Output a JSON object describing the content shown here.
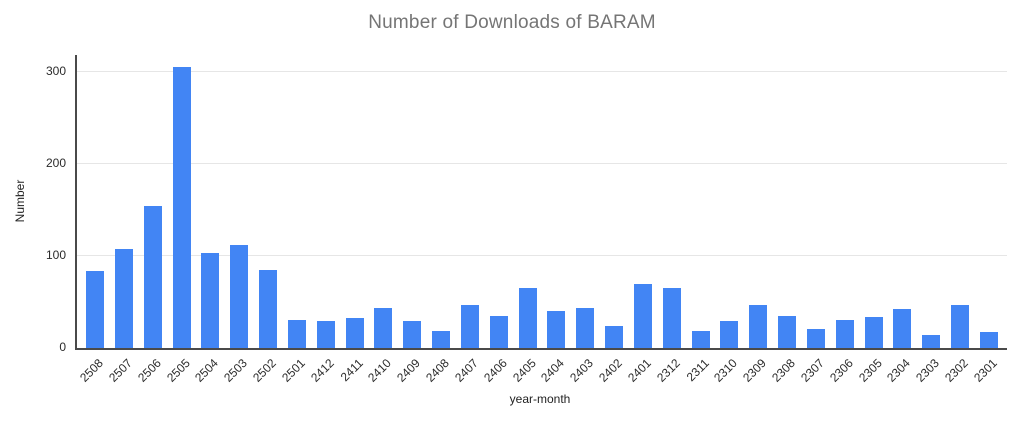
{
  "chart_data": {
    "type": "bar",
    "title": "Number of Downloads of BARAM",
    "xlabel": "year-month",
    "ylabel": "Number",
    "categories": [
      "2508",
      "2507",
      "2506",
      "2505",
      "2504",
      "2503",
      "2502",
      "2501",
      "2412",
      "2411",
      "2410",
      "2409",
      "2408",
      "2407",
      "2406",
      "2405",
      "2404",
      "2403",
      "2402",
      "2401",
      "2312",
      "2311",
      "2310",
      "2309",
      "2308",
      "2307",
      "2306",
      "2305",
      "2304",
      "2303",
      "2302",
      "2301"
    ],
    "values": [
      84,
      108,
      155,
      306,
      103,
      112,
      85,
      30,
      29,
      33,
      44,
      29,
      19,
      47,
      35,
      65,
      40,
      44,
      24,
      70,
      65,
      19,
      29,
      47,
      35,
      21,
      31,
      34,
      43,
      14,
      47,
      17
    ],
    "y_ticks": [
      0,
      100,
      200,
      300
    ],
    "ylim": [
      0,
      319
    ],
    "grid": true,
    "legend": "none",
    "bar_color": "#4285f4",
    "title_color": "#757575",
    "gridline_color": "#e6e6e6",
    "axis_color": "#4a4a4a"
  }
}
